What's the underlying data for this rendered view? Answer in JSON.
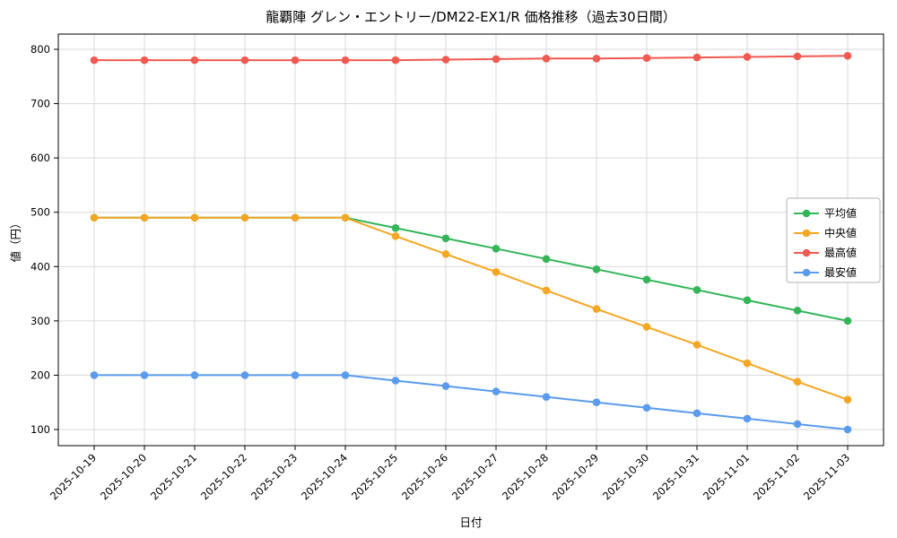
{
  "chart_data": {
    "type": "line",
    "title": "龍覇陣 グレン・エントリー/DM22-EX1/R 価格推移（過去30日間）",
    "xlabel": "日付",
    "ylabel": "値（円）",
    "ylim": [
      100,
      800
    ],
    "yticks": [
      100,
      200,
      300,
      400,
      500,
      600,
      700,
      800
    ],
    "grid": true,
    "grid_color": "#d9d9d9",
    "axis_color": "#000000",
    "plot_bg": "#ffffff",
    "legend_position": "right",
    "x": [
      "2025-10-19",
      "2025-10-20",
      "2025-10-21",
      "2025-10-22",
      "2025-10-23",
      "2025-10-24",
      "2025-10-25",
      "2025-10-26",
      "2025-10-27",
      "2025-10-28",
      "2025-10-29",
      "2025-10-30",
      "2025-10-31",
      "2025-11-01",
      "2025-11-02",
      "2025-11-03"
    ],
    "series": [
      {
        "id": "average",
        "name": "平均値",
        "color": "#33b558",
        "values": [
          490,
          490,
          490,
          490,
          490,
          490,
          471,
          452,
          433,
          414,
          395,
          376,
          357,
          338,
          319,
          300
        ]
      },
      {
        "id": "median",
        "name": "中央値",
        "color": "#f5a623",
        "values": [
          490,
          490,
          490,
          490,
          490,
          490,
          456,
          423,
          390,
          356,
          322,
          289,
          256,
          222,
          188,
          155
        ]
      },
      {
        "id": "max",
        "name": "最高値",
        "color": "#f25951",
        "values": [
          780,
          780,
          780,
          780,
          780,
          780,
          780,
          781,
          782,
          783,
          783,
          784,
          785,
          786,
          787,
          788
        ]
      },
      {
        "id": "min",
        "name": "最安値",
        "color": "#5b9bee",
        "values": [
          200,
          200,
          200,
          200,
          200,
          200,
          190,
          180,
          170,
          160,
          150,
          140,
          130,
          120,
          110,
          100
        ]
      }
    ]
  }
}
